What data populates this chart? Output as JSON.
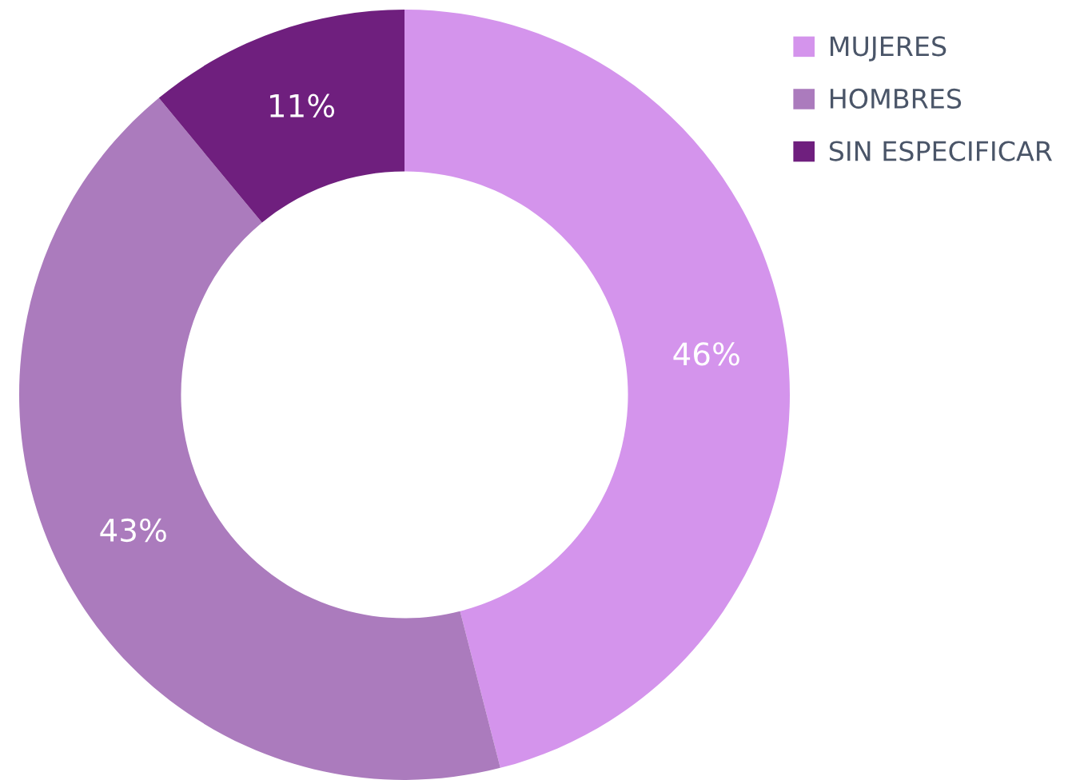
{
  "chart_data": {
    "type": "donut",
    "categories": [
      "MUJERES",
      "HOMBRES",
      "SIN ESPECIFICAR"
    ],
    "values": [
      46,
      43,
      11
    ],
    "colors": [
      "#d494ec",
      "#ab7bbd",
      "#6f1f7e"
    ],
    "value_labels": [
      "46%",
      "43%",
      "11%"
    ],
    "legend": "top right"
  }
}
